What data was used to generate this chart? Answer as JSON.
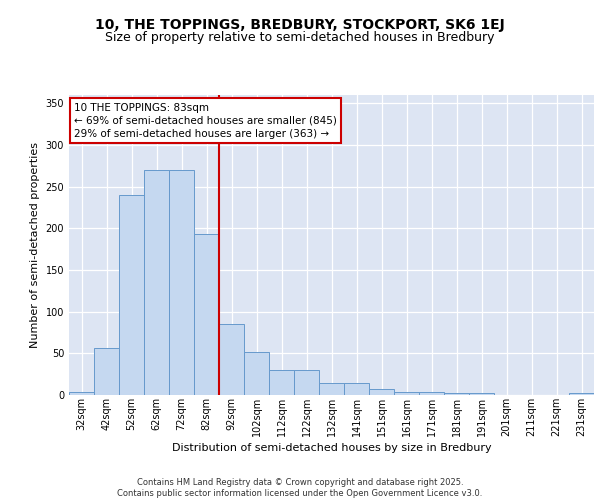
{
  "title": "10, THE TOPPINGS, BREDBURY, STOCKPORT, SK6 1EJ",
  "subtitle": "Size of property relative to semi-detached houses in Bredbury",
  "xlabel": "Distribution of semi-detached houses by size in Bredbury",
  "ylabel": "Number of semi-detached properties",
  "categories": [
    "32sqm",
    "42sqm",
    "52sqm",
    "62sqm",
    "72sqm",
    "82sqm",
    "92sqm",
    "102sqm",
    "112sqm",
    "122sqm",
    "132sqm",
    "141sqm",
    "151sqm",
    "161sqm",
    "171sqm",
    "181sqm",
    "191sqm",
    "201sqm",
    "211sqm",
    "221sqm",
    "231sqm"
  ],
  "values": [
    4,
    57,
    240,
    270,
    270,
    193,
    85,
    52,
    30,
    30,
    15,
    15,
    7,
    4,
    4,
    3,
    3,
    0,
    0,
    0,
    2
  ],
  "bar_color": "#c5d8f0",
  "bar_edge_color": "#6699cc",
  "background_color": "#dde5f3",
  "grid_color": "#ffffff",
  "vline_color": "#cc0000",
  "vline_x": 5.5,
  "annotation_line1": "10 THE TOPPINGS: 83sqm",
  "annotation_line2": "← 69% of semi-detached houses are smaller (845)",
  "annotation_line3": "29% of semi-detached houses are larger (363) →",
  "annotation_box_facecolor": "#ffffff",
  "annotation_box_edgecolor": "#cc0000",
  "ylim": [
    0,
    360
  ],
  "yticks": [
    0,
    50,
    100,
    150,
    200,
    250,
    300,
    350
  ],
  "footer_text": "Contains HM Land Registry data © Crown copyright and database right 2025.\nContains public sector information licensed under the Open Government Licence v3.0.",
  "title_fontsize": 10,
  "subtitle_fontsize": 9,
  "axis_label_fontsize": 8,
  "tick_fontsize": 7,
  "annotation_fontsize": 7.5,
  "footer_fontsize": 6
}
